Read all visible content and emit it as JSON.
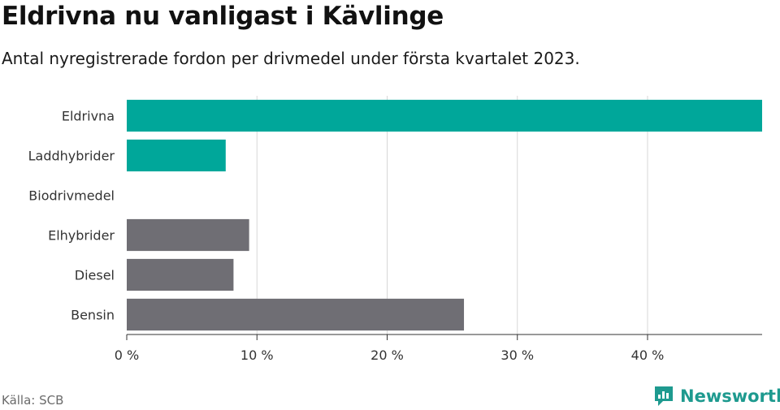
{
  "header": {
    "title": "Eldrivna nu vanligast i Kävlinge",
    "subtitle": "Antal nyregistrerade fordon per drivmedel under första kvartalet 2023."
  },
  "footer": {
    "source": "Källa: SCB",
    "brand": "Newsworthy"
  },
  "colors": {
    "highlight": "#00a79a",
    "default": "#6f6e74",
    "grid": "#d7d7d7",
    "axis": "#333333"
  },
  "chart_data": {
    "type": "bar",
    "orientation": "horizontal",
    "title": "Eldrivna nu vanligast i Kävlinge",
    "subtitle": "Antal nyregistrerade fordon per drivmedel under första kvartalet 2023.",
    "categories": [
      "Eldrivna",
      "Laddhybrider",
      "Biodrivmedel",
      "Elhybrider",
      "Diesel",
      "Bensin"
    ],
    "values": [
      48.8,
      7.6,
      0,
      9.4,
      8.2,
      25.9
    ],
    "highlighted": [
      true,
      true,
      true,
      false,
      false,
      false
    ],
    "unit": "%",
    "xlim": [
      0,
      48.8
    ],
    "xticks": [
      0,
      10,
      20,
      30,
      40
    ],
    "xtick_labels": [
      "0 %",
      "10 %",
      "20 %",
      "30 %",
      "40 %"
    ],
    "grid": true,
    "legend": "none"
  }
}
